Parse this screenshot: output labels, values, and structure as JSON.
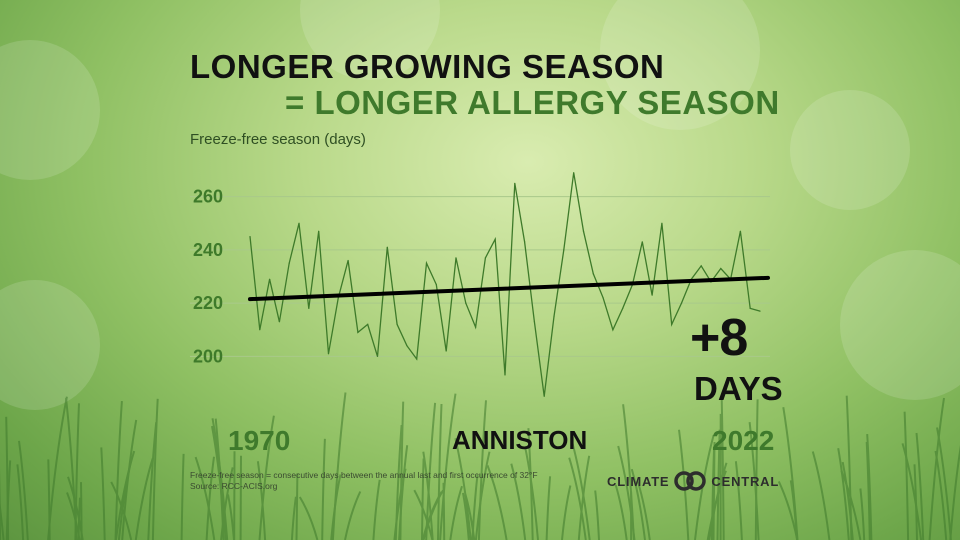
{
  "title_line1": "LONGER GROWING SEASON",
  "title_line2": "= LONGER ALLERGY SEASON",
  "y_axis_label": "Freeze-free season (days)",
  "change_value": "+8",
  "change_unit": "DAYS",
  "year_start": "1970",
  "year_end": "2022",
  "location": "ANNISTON",
  "footnote_line1": "Freeze-free season = consecutive days between the annual last and first occurrence of 32°F",
  "footnote_line2": "Source: RCC-ACIS.org",
  "brand_left": "CLIMATE",
  "brand_right": "CENTRAL",
  "colors": {
    "line": "#3e7a2a",
    "trend": "#000000",
    "grid": "#a9c98a",
    "title_accent": "#3f7a2c"
  },
  "chart_data": {
    "type": "line",
    "title": "LONGER GROWING SEASON = LONGER ALLERGY SEASON",
    "ylabel": "Freeze-free season (days)",
    "xlim": [
      1970,
      2022
    ],
    "ylim": [
      190,
      270
    ],
    "yticks": [
      200,
      220,
      240,
      260
    ],
    "grid": true,
    "series": [
      {
        "x": [
          1970,
          1971,
          1972,
          1973,
          1974,
          1975,
          1976,
          1977,
          1978,
          1979,
          1980,
          1981,
          1982,
          1983,
          1984,
          1985,
          1986,
          1987,
          1988,
          1989,
          1990,
          1991,
          1992,
          1993,
          1994,
          1995,
          1996,
          1997,
          1998,
          1999,
          2000,
          2001,
          2002,
          2003,
          2004,
          2005,
          2006,
          2007,
          2008,
          2009,
          2010,
          2011,
          2012,
          2013,
          2014,
          2015,
          2016,
          2017,
          2018,
          2019,
          2020,
          2021,
          2022
        ],
        "values": [
          245,
          210,
          229,
          213,
          235,
          250,
          218,
          247,
          201,
          222,
          236,
          209,
          212,
          200,
          241,
          212,
          204,
          199,
          235,
          227,
          202,
          237,
          220,
          211,
          237,
          244,
          193,
          265,
          243,
          213,
          185,
          215,
          240,
          269,
          247,
          231,
          222,
          210,
          218,
          227,
          243,
          223,
          250,
          212,
          220,
          229,
          234,
          228,
          233,
          229,
          247,
          218,
          217
        ]
      }
    ],
    "trend": {
      "x": [
        1970,
        2022
      ],
      "values": [
        221.5,
        229.5
      ]
    },
    "change_label": "+8 DAYS"
  }
}
